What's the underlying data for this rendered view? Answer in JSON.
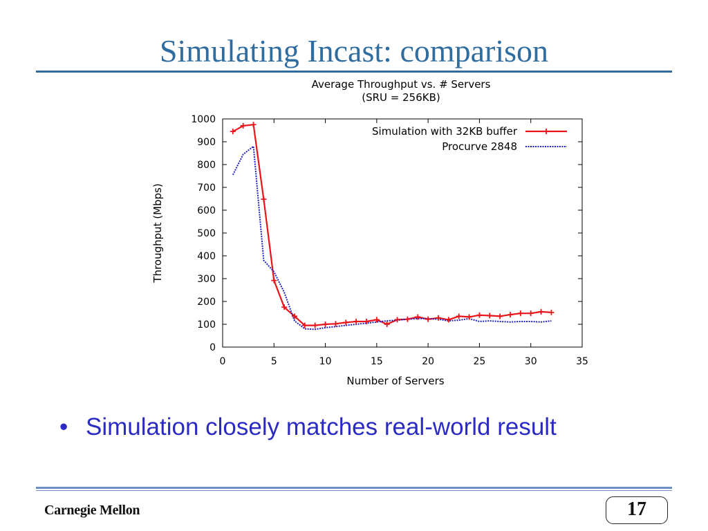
{
  "slide": {
    "title": "Simulating Incast: comparison",
    "bullet": "Simulation closely matches real-world result",
    "bullet_marker": "•",
    "logo": "Carnegie Mellon",
    "page_number": "17"
  },
  "colors": {
    "title": "#2f6c9f",
    "bullet": "#2b2bc4",
    "series_sim": "#e8141a",
    "series_procurve": "#1e1ec0"
  },
  "chart_data": {
    "type": "line",
    "title": "Average Throughput vs. # Servers",
    "subtitle": "(SRU = 256KB)",
    "xlabel": "Number of Servers",
    "ylabel": "Throughput (Mbps)",
    "xlim": [
      0,
      35
    ],
    "ylim": [
      0,
      1000
    ],
    "xticks": [
      0,
      5,
      10,
      15,
      20,
      25,
      30,
      35
    ],
    "yticks": [
      0,
      100,
      200,
      300,
      400,
      500,
      600,
      700,
      800,
      900,
      1000
    ],
    "legend_position": "top-right",
    "series": [
      {
        "name": "Simulation with 32KB buffer",
        "style": "solid-with-plus-markers",
        "x": [
          1,
          2,
          3,
          4,
          5,
          6,
          7,
          8,
          9,
          10,
          11,
          12,
          13,
          14,
          15,
          16,
          17,
          18,
          19,
          20,
          21,
          22,
          23,
          24,
          25,
          26,
          27,
          28,
          29,
          30,
          31,
          32
        ],
        "y": [
          945,
          970,
          975,
          648,
          292,
          175,
          135,
          95,
          95,
          100,
          102,
          108,
          112,
          112,
          120,
          100,
          120,
          122,
          132,
          122,
          128,
          120,
          135,
          132,
          140,
          138,
          135,
          142,
          148,
          148,
          155,
          152
        ]
      },
      {
        "name": "Procurve 2848",
        "style": "dotted",
        "x": [
          1,
          2,
          3,
          4,
          5,
          6,
          7,
          8,
          9,
          10,
          11,
          12,
          13,
          14,
          15,
          16,
          17,
          18,
          19,
          20,
          21,
          22,
          23,
          24,
          25,
          26,
          27,
          28,
          29,
          30,
          31,
          32
        ],
        "y": [
          755,
          845,
          880,
          380,
          330,
          240,
          115,
          80,
          78,
          85,
          90,
          95,
          100,
          105,
          110,
          115,
          118,
          122,
          125,
          125,
          122,
          115,
          118,
          125,
          112,
          115,
          112,
          110,
          112,
          112,
          110,
          115
        ]
      }
    ]
  }
}
